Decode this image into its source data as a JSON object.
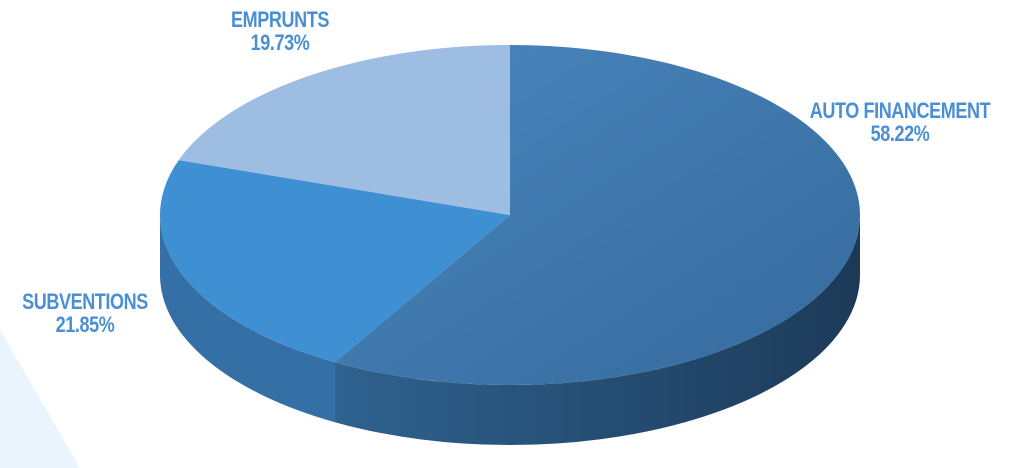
{
  "chart_data": {
    "type": "pie",
    "title": "",
    "slices": [
      {
        "label": "AUTO FINANCEMENT",
        "value": 58.22,
        "display": "58.22%",
        "color": "#3d78b0"
      },
      {
        "label": "SUBVENTIONS",
        "value": 21.85,
        "display": "21.85%",
        "color": "#3f8fd3"
      },
      {
        "label": "EMPRUNTS",
        "value": 19.73,
        "display": "19.73%",
        "color": "#9dbde2"
      }
    ],
    "style": "3d",
    "label_color": "#4a8fd6",
    "decoration_color": "#eaf4fc"
  }
}
